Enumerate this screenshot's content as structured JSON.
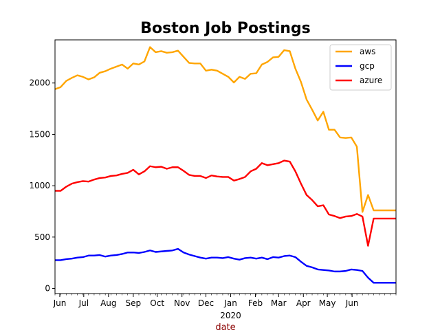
{
  "chart_data": {
    "type": "line",
    "title": "Boston Job Postings",
    "xlabel": "date",
    "ylabel": "",
    "xlim": [
      "2019-05-26",
      "2020-07-26"
    ],
    "ylim": [
      -50,
      2420
    ],
    "grid": false,
    "legend_position": "top-right",
    "x_ticks": [
      {
        "date": "2019-06-01",
        "label": "Jun"
      },
      {
        "date": "2019-07-01",
        "label": "Jul"
      },
      {
        "date": "2019-08-01",
        "label": "Aug"
      },
      {
        "date": "2019-09-01",
        "label": "Sep"
      },
      {
        "date": "2019-10-01",
        "label": "Oct"
      },
      {
        "date": "2019-11-01",
        "label": "Nov"
      },
      {
        "date": "2019-12-01",
        "label": "Dec"
      },
      {
        "date": "2020-01-01",
        "label": "Jan"
      },
      {
        "date": "2020-02-01",
        "label": "Feb"
      },
      {
        "date": "2020-03-01",
        "label": "Mar"
      },
      {
        "date": "2020-04-01",
        "label": "Apr"
      },
      {
        "date": "2020-05-01",
        "label": "May"
      },
      {
        "date": "2020-06-01",
        "label": "Jun"
      }
    ],
    "x_year_label": "2020",
    "y_ticks": [
      0,
      500,
      1000,
      1500,
      2000
    ],
    "dates": [
      "2019-05-26",
      "2019-06-02",
      "2019-06-09",
      "2019-06-16",
      "2019-06-23",
      "2019-06-30",
      "2019-07-07",
      "2019-07-14",
      "2019-07-21",
      "2019-07-28",
      "2019-08-04",
      "2019-08-11",
      "2019-08-18",
      "2019-08-25",
      "2019-09-01",
      "2019-09-08",
      "2019-09-15",
      "2019-09-22",
      "2019-09-29",
      "2019-10-06",
      "2019-10-13",
      "2019-10-20",
      "2019-10-27",
      "2019-11-03",
      "2019-11-10",
      "2019-11-17",
      "2019-11-24",
      "2019-12-01",
      "2019-12-08",
      "2019-12-15",
      "2019-12-22",
      "2019-12-29",
      "2020-01-05",
      "2020-01-12",
      "2020-01-19",
      "2020-01-26",
      "2020-02-02",
      "2020-02-09",
      "2020-02-16",
      "2020-02-23",
      "2020-03-01",
      "2020-03-08",
      "2020-03-15",
      "2020-03-22",
      "2020-03-29",
      "2020-04-05",
      "2020-04-12",
      "2020-04-19",
      "2020-04-26",
      "2020-05-03",
      "2020-05-10",
      "2020-05-17",
      "2020-05-24",
      "2020-05-31",
      "2020-06-07",
      "2020-06-14",
      "2020-06-21",
      "2020-06-28",
      "2020-07-05",
      "2020-07-12",
      "2020-07-19",
      "2020-07-26"
    ],
    "series": [
      {
        "name": "aws",
        "color": "#ffa500",
        "values": [
          1940,
          1960,
          2020,
          2050,
          2075,
          2060,
          2035,
          2055,
          2100,
          2115,
          2140,
          2160,
          2180,
          2140,
          2190,
          2180,
          2210,
          2350,
          2300,
          2310,
          2295,
          2300,
          2315,
          2255,
          2195,
          2190,
          2190,
          2120,
          2130,
          2120,
          2090,
          2060,
          2005,
          2060,
          2040,
          2090,
          2095,
          2180,
          2205,
          2250,
          2255,
          2320,
          2310,
          2140,
          2010,
          1840,
          1740,
          1635,
          1720,
          1545,
          1545,
          1470,
          1465,
          1470,
          1380,
          745,
          910,
          760,
          760,
          760,
          760,
          760
        ]
      },
      {
        "name": "gcp",
        "color": "#0000ff",
        "values": [
          275,
          275,
          285,
          290,
          300,
          305,
          320,
          320,
          325,
          310,
          320,
          325,
          335,
          350,
          350,
          345,
          355,
          370,
          355,
          360,
          365,
          370,
          385,
          350,
          330,
          315,
          300,
          290,
          300,
          300,
          295,
          305,
          290,
          280,
          295,
          300,
          290,
          300,
          285,
          305,
          300,
          315,
          320,
          305,
          260,
          220,
          205,
          185,
          180,
          175,
          165,
          165,
          170,
          185,
          180,
          170,
          105,
          55,
          55,
          55,
          55,
          55
        ]
      },
      {
        "name": "azure",
        "color": "#ff0000",
        "values": [
          950,
          950,
          990,
          1020,
          1035,
          1045,
          1040,
          1060,
          1075,
          1080,
          1095,
          1100,
          1115,
          1125,
          1155,
          1110,
          1140,
          1190,
          1180,
          1185,
          1165,
          1180,
          1180,
          1145,
          1105,
          1095,
          1095,
          1075,
          1100,
          1090,
          1085,
          1085,
          1050,
          1065,
          1085,
          1140,
          1165,
          1220,
          1200,
          1210,
          1220,
          1245,
          1235,
          1140,
          1020,
          910,
          860,
          800,
          810,
          720,
          705,
          685,
          700,
          705,
          725,
          700,
          415,
          680,
          680,
          680,
          680,
          680
        ]
      }
    ]
  }
}
